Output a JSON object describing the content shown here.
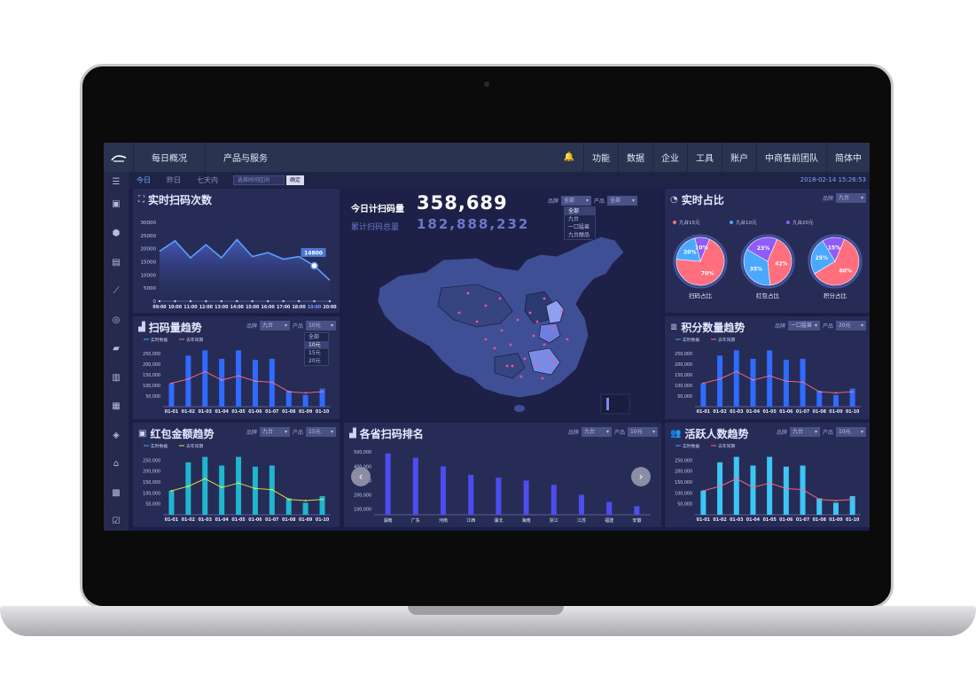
{
  "topnav": {
    "logo": "logo",
    "items": [
      "每日概况",
      "产品与服务"
    ],
    "right": [
      "功能",
      "数据",
      "企业",
      "工具",
      "账户",
      "中商售前团队",
      "简体中"
    ]
  },
  "subnav": {
    "tabs": [
      "今日",
      "昨日",
      "七天内"
    ],
    "date_placeholder": "选择时间区间",
    "confirm": "确定",
    "timestamp": "2018-02-14  15:26:53"
  },
  "sidebar_icons": [
    "menu-icon",
    "inbox-icon",
    "cube-icon",
    "document-icon",
    "trend-icon",
    "compass-icon",
    "truck-icon",
    "clipboard-icon",
    "report-icon",
    "blocks-icon",
    "store-icon",
    "bank-icon",
    "checklist-icon"
  ],
  "filters": {
    "brand": "品牌",
    "product": "产品",
    "brand_value": "九台",
    "product_value": "10元",
    "all": "全部",
    "product_options": [
      "全部",
      "10元",
      "15元",
      "20元"
    ],
    "brand_options": [
      "全部",
      "九台",
      "一口猛兽",
      "九台醇品"
    ],
    "jifen_brand": "一口猛兽",
    "jifen_product": "20元"
  },
  "realtime_scans": {
    "title": "实时扫码次数",
    "tooltip": "14800",
    "chart_data": {
      "type": "area",
      "x": [
        "09:00",
        "10:00",
        "11:00",
        "12:00",
        "13:00",
        "14:00",
        "15:00",
        "16:00",
        "17:00",
        "18:00",
        "19:00",
        "20:00"
      ],
      "yticks": [
        0,
        5000,
        10000,
        15000,
        20000,
        25000,
        30000
      ],
      "ylim": [
        0,
        30000
      ],
      "values": [
        19000,
        23000,
        16500,
        21500,
        16500,
        23500,
        17000,
        18500,
        16000,
        17000,
        13500,
        8000
      ]
    }
  },
  "totals": {
    "today_label": "今日计扫码量",
    "today_value": "358,689",
    "total_label": "累计扫码总量",
    "total_value": "182,888,232"
  },
  "ratio": {
    "title": "实时占比",
    "legend": [
      "九台15元",
      "九台10元",
      "九台20元"
    ],
    "colors": [
      "#ff6f7e",
      "#4aa8ff",
      "#8f5cf7"
    ],
    "pies": [
      {
        "label": "扫码占比",
        "values": [
          70,
          20,
          10
        ]
      },
      {
        "label": "红包占比",
        "values": [
          42,
          35,
          23
        ]
      },
      {
        "label": "积分占比",
        "values": [
          60,
          25,
          15
        ]
      }
    ]
  },
  "trend_legend": [
    "实时数据",
    "去年同期"
  ],
  "scan_trend": {
    "title": "扫码量趋势",
    "chart_data": {
      "type": "bar",
      "categories": [
        "01-01",
        "01-02",
        "01-03",
        "01-04",
        "01-05",
        "01-06",
        "01-07",
        "01-08",
        "01-09",
        "01-10"
      ],
      "yticks": [
        50000,
        100000,
        150000,
        200000,
        250000
      ],
      "ylim": [
        0,
        300000
      ],
      "series": [
        {
          "name": "实时数据",
          "values": [
            110000,
            240000,
            265000,
            225000,
            265000,
            220000,
            225000,
            75000,
            55000,
            85000
          ]
        },
        {
          "name": "去年同期",
          "values": [
            110000,
            130000,
            165000,
            125000,
            145000,
            120000,
            115000,
            70000,
            65000,
            70000
          ]
        }
      ]
    }
  },
  "jifen_trend": {
    "title": "积分数量趋势",
    "chart_data": {
      "type": "bar",
      "categories": [
        "01-01",
        "01-02",
        "01-03",
        "01-04",
        "01-05",
        "01-06",
        "01-07",
        "01-08",
        "01-09",
        "01-10"
      ],
      "yticks": [
        50000,
        100000,
        150000,
        200000,
        250000
      ],
      "ylim": [
        0,
        300000
      ],
      "series": [
        {
          "name": "实时数据",
          "values": [
            110000,
            240000,
            265000,
            225000,
            265000,
            220000,
            225000,
            75000,
            55000,
            85000
          ]
        },
        {
          "name": "去年同期",
          "values": [
            110000,
            130000,
            165000,
            125000,
            145000,
            120000,
            115000,
            70000,
            65000,
            70000
          ]
        }
      ]
    }
  },
  "hongbao_trend": {
    "title": "红包金额趋势",
    "chart_data": {
      "type": "bar",
      "categories": [
        "01-01",
        "01-02",
        "01-03",
        "01-04",
        "01-05",
        "01-06",
        "01-07",
        "01-08",
        "01-09",
        "01-10"
      ],
      "yticks": [
        50000,
        100000,
        150000,
        200000,
        250000
      ],
      "ylim": [
        0,
        300000
      ],
      "series": [
        {
          "name": "实时数据",
          "values": [
            110000,
            240000,
            265000,
            225000,
            265000,
            220000,
            225000,
            75000,
            55000,
            85000
          ]
        },
        {
          "name": "去年同期",
          "values": [
            110000,
            130000,
            165000,
            125000,
            145000,
            120000,
            115000,
            70000,
            65000,
            70000
          ]
        }
      ]
    }
  },
  "province_rank": {
    "title": "各省扫码排名",
    "chart_data": {
      "type": "bar",
      "categories": [
        "湖南",
        "广东",
        "河南",
        "江西",
        "湖北",
        "海南",
        "浙江",
        "江苏",
        "福建",
        "安徽"
      ],
      "yticks": [
        100000,
        200000,
        300000,
        400000,
        500000
      ],
      "ylim": [
        60000,
        520000
      ],
      "values": [
        490000,
        460000,
        400000,
        340000,
        320000,
        300000,
        270000,
        200000,
        150000,
        120000
      ]
    }
  },
  "active_users": {
    "title": "活跃人数趋势",
    "chart_data": {
      "type": "bar",
      "categories": [
        "01-01",
        "01-02",
        "01-03",
        "01-04",
        "01-05",
        "01-06",
        "01-07",
        "01-08",
        "01-09",
        "01-10"
      ],
      "yticks": [
        50000,
        100000,
        150000,
        200000,
        250000
      ],
      "ylim": [
        0,
        300000
      ],
      "series": [
        {
          "name": "实时数据",
          "values": [
            110000,
            240000,
            265000,
            225000,
            265000,
            220000,
            225000,
            75000,
            55000,
            85000
          ]
        },
        {
          "name": "去年同期",
          "values": [
            110000,
            130000,
            165000,
            125000,
            145000,
            120000,
            115000,
            70000,
            65000,
            70000
          ]
        }
      ]
    }
  },
  "colors": {
    "bar_blue": "#2f6bff",
    "bar_cyan": "#3cc6f5",
    "line_pink": "#ff6f7e",
    "line_yellow": "#e6e64a",
    "accent": "#7aa6ff",
    "map_fill": "#3f4f95"
  }
}
